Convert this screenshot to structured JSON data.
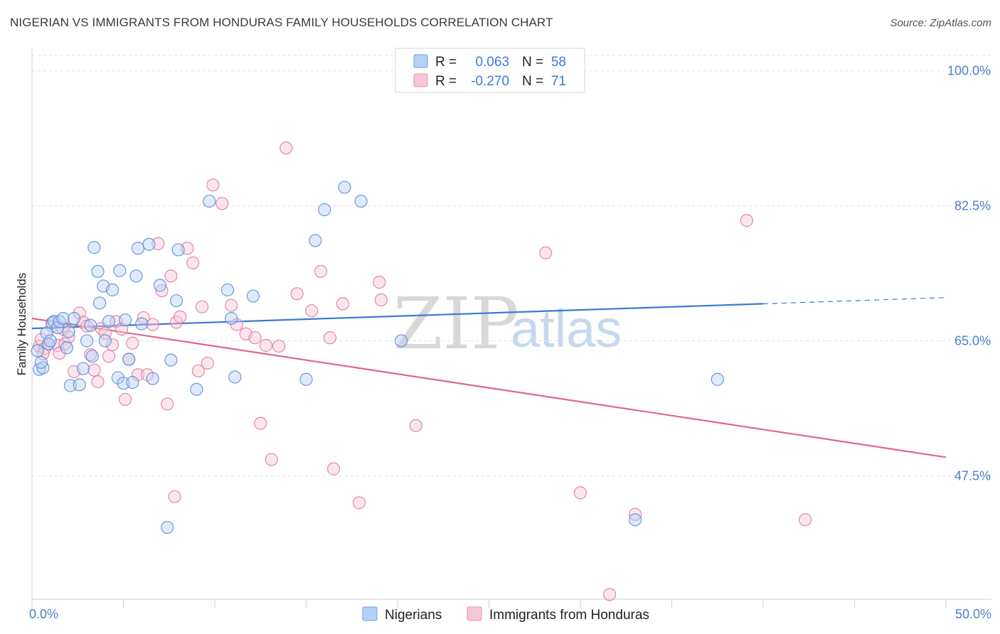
{
  "title": "NIGERIAN VS IMMIGRANTS FROM HONDURAS FAMILY HOUSEHOLDS CORRELATION CHART",
  "source": "Source: ZipAtlas.com",
  "watermark": {
    "part1": "ZIP",
    "part2": "atlas"
  },
  "legend": {
    "rows": [
      {
        "r_label": "R =",
        "r_value": "0.063",
        "n_label": "N =",
        "n_value": "58",
        "color": "#6a9ee6",
        "fill": "#b7d0f5"
      },
      {
        "r_label": "R =",
        "r_value": "-0.270",
        "n_label": "N =",
        "n_value": "71",
        "color": "#e690b0",
        "fill": "#f8c7d7"
      }
    ]
  },
  "bottom_legend": [
    {
      "label": "Nigerians",
      "color": "#6a9ee6",
      "fill": "#b7d0f5"
    },
    {
      "label": "Immigrants from Honduras",
      "color": "#e690b0",
      "fill": "#f8c7d7"
    }
  ],
  "chart_data": {
    "type": "scatter",
    "title": "NIGERIAN VS IMMIGRANTS FROM HONDURAS FAMILY HOUSEHOLDS CORRELATION CHART",
    "xlabel": "",
    "ylabel": "Family Households",
    "xlim": [
      0,
      50
    ],
    "ylim": [
      31.5,
      102
    ],
    "x_tick_labels": [
      "0.0%",
      "50.0%"
    ],
    "y_ticks": [
      47.5,
      65.0,
      82.5,
      100.0
    ],
    "y_tick_labels": [
      "47.5%",
      "65.0%",
      "82.5%",
      "100.0%"
    ],
    "grid": true,
    "series": [
      {
        "name": "Nigerians",
        "color": "#5b8fdc",
        "fill": "#b7d0f5",
        "points": [
          [
            0.3,
            63.7
          ],
          [
            0.4,
            61.3
          ],
          [
            0.6,
            61.5
          ],
          [
            0.8,
            66.0
          ],
          [
            0.9,
            64.6
          ],
          [
            1.0,
            65.0
          ],
          [
            1.1,
            67.3
          ],
          [
            1.2,
            67.5
          ],
          [
            1.4,
            66.7
          ],
          [
            1.5,
            67.5
          ],
          [
            1.7,
            67.9
          ],
          [
            1.9,
            64.1
          ],
          [
            2.0,
            66.2
          ],
          [
            2.3,
            67.9
          ],
          [
            2.1,
            59.2
          ],
          [
            2.6,
            59.3
          ],
          [
            2.8,
            61.4
          ],
          [
            3.0,
            65.0
          ],
          [
            3.2,
            67.0
          ],
          [
            3.3,
            63.0
          ],
          [
            3.4,
            77.1
          ],
          [
            3.6,
            74.0
          ],
          [
            3.7,
            69.9
          ],
          [
            3.9,
            72.1
          ],
          [
            4.0,
            65.0
          ],
          [
            4.2,
            67.5
          ],
          [
            4.4,
            71.6
          ],
          [
            4.7,
            60.2
          ],
          [
            4.8,
            74.1
          ],
          [
            5.0,
            59.5
          ],
          [
            5.1,
            67.7
          ],
          [
            5.3,
            62.6
          ],
          [
            5.5,
            59.6
          ],
          [
            5.7,
            73.4
          ],
          [
            5.8,
            77.0
          ],
          [
            6.0,
            67.2
          ],
          [
            6.4,
            77.5
          ],
          [
            7.0,
            72.2
          ],
          [
            7.6,
            62.5
          ],
          [
            7.9,
            70.2
          ],
          [
            8.0,
            76.8
          ],
          [
            9.0,
            58.7
          ],
          [
            9.7,
            83.1
          ],
          [
            10.7,
            71.6
          ],
          [
            10.9,
            67.9
          ],
          [
            11.1,
            60.3
          ],
          [
            12.1,
            70.8
          ],
          [
            15.0,
            60.0
          ],
          [
            15.5,
            78.0
          ],
          [
            16.0,
            82.0
          ],
          [
            17.1,
            84.9
          ],
          [
            18.0,
            83.1
          ],
          [
            20.2,
            65.0
          ],
          [
            33.0,
            41.8
          ],
          [
            37.5,
            60.0
          ],
          [
            7.4,
            40.8
          ],
          [
            0.5,
            62.2
          ],
          [
            6.6,
            60.1
          ]
        ],
        "trend": {
          "x0": 0,
          "y0": 66.6,
          "x1": 40,
          "y1": 69.8,
          "x2": 50,
          "y2": 70.6
        }
      },
      {
        "name": "Immigrants from Honduras",
        "color": "#e07ca0",
        "fill": "#f8c7d7",
        "points": [
          [
            0.4,
            64.3
          ],
          [
            0.5,
            65.2
          ],
          [
            0.7,
            64.0
          ],
          [
            0.9,
            64.6
          ],
          [
            1.1,
            66.9
          ],
          [
            1.2,
            67.5
          ],
          [
            1.4,
            64.4
          ],
          [
            1.5,
            63.4
          ],
          [
            1.7,
            66.5
          ],
          [
            1.8,
            64.6
          ],
          [
            2.0,
            65.5
          ],
          [
            2.3,
            61.0
          ],
          [
            2.6,
            68.6
          ],
          [
            2.8,
            67.4
          ],
          [
            3.0,
            66.9
          ],
          [
            3.2,
            63.2
          ],
          [
            3.4,
            61.2
          ],
          [
            3.6,
            59.7
          ],
          [
            3.8,
            66.6
          ],
          [
            4.0,
            66.0
          ],
          [
            4.2,
            63.0
          ],
          [
            4.4,
            64.5
          ],
          [
            4.6,
            67.5
          ],
          [
            4.9,
            66.5
          ],
          [
            5.1,
            57.4
          ],
          [
            5.3,
            62.6
          ],
          [
            5.5,
            64.7
          ],
          [
            5.8,
            60.6
          ],
          [
            6.1,
            68.0
          ],
          [
            6.3,
            60.6
          ],
          [
            6.6,
            67.1
          ],
          [
            6.9,
            77.6
          ],
          [
            7.1,
            71.5
          ],
          [
            7.4,
            56.8
          ],
          [
            7.6,
            73.4
          ],
          [
            7.9,
            67.4
          ],
          [
            8.1,
            68.1
          ],
          [
            8.5,
            77.0
          ],
          [
            8.8,
            75.1
          ],
          [
            9.1,
            61.1
          ],
          [
            9.3,
            69.4
          ],
          [
            9.6,
            62.1
          ],
          [
            9.9,
            85.2
          ],
          [
            10.4,
            82.8
          ],
          [
            10.9,
            69.6
          ],
          [
            11.2,
            67.1
          ],
          [
            11.7,
            65.9
          ],
          [
            12.2,
            65.4
          ],
          [
            12.5,
            54.3
          ],
          [
            12.8,
            64.4
          ],
          [
            13.1,
            49.6
          ],
          [
            13.5,
            64.3
          ],
          [
            13.9,
            90.0
          ],
          [
            14.5,
            71.1
          ],
          [
            15.3,
            68.9
          ],
          [
            15.8,
            74.0
          ],
          [
            16.3,
            65.4
          ],
          [
            16.5,
            48.4
          ],
          [
            17.0,
            69.8
          ],
          [
            17.9,
            44.0
          ],
          [
            19.0,
            72.6
          ],
          [
            19.1,
            70.3
          ],
          [
            21.0,
            54.0
          ],
          [
            28.1,
            76.4
          ],
          [
            30.0,
            45.3
          ],
          [
            31.6,
            32.1
          ],
          [
            33.0,
            42.5
          ],
          [
            39.1,
            80.6
          ],
          [
            42.3,
            41.8
          ],
          [
            7.8,
            44.8
          ],
          [
            0.6,
            63.3
          ]
        ],
        "trend": {
          "x0": 0,
          "y0": 67.9,
          "x1": 50,
          "y1": 49.9
        }
      }
    ]
  }
}
